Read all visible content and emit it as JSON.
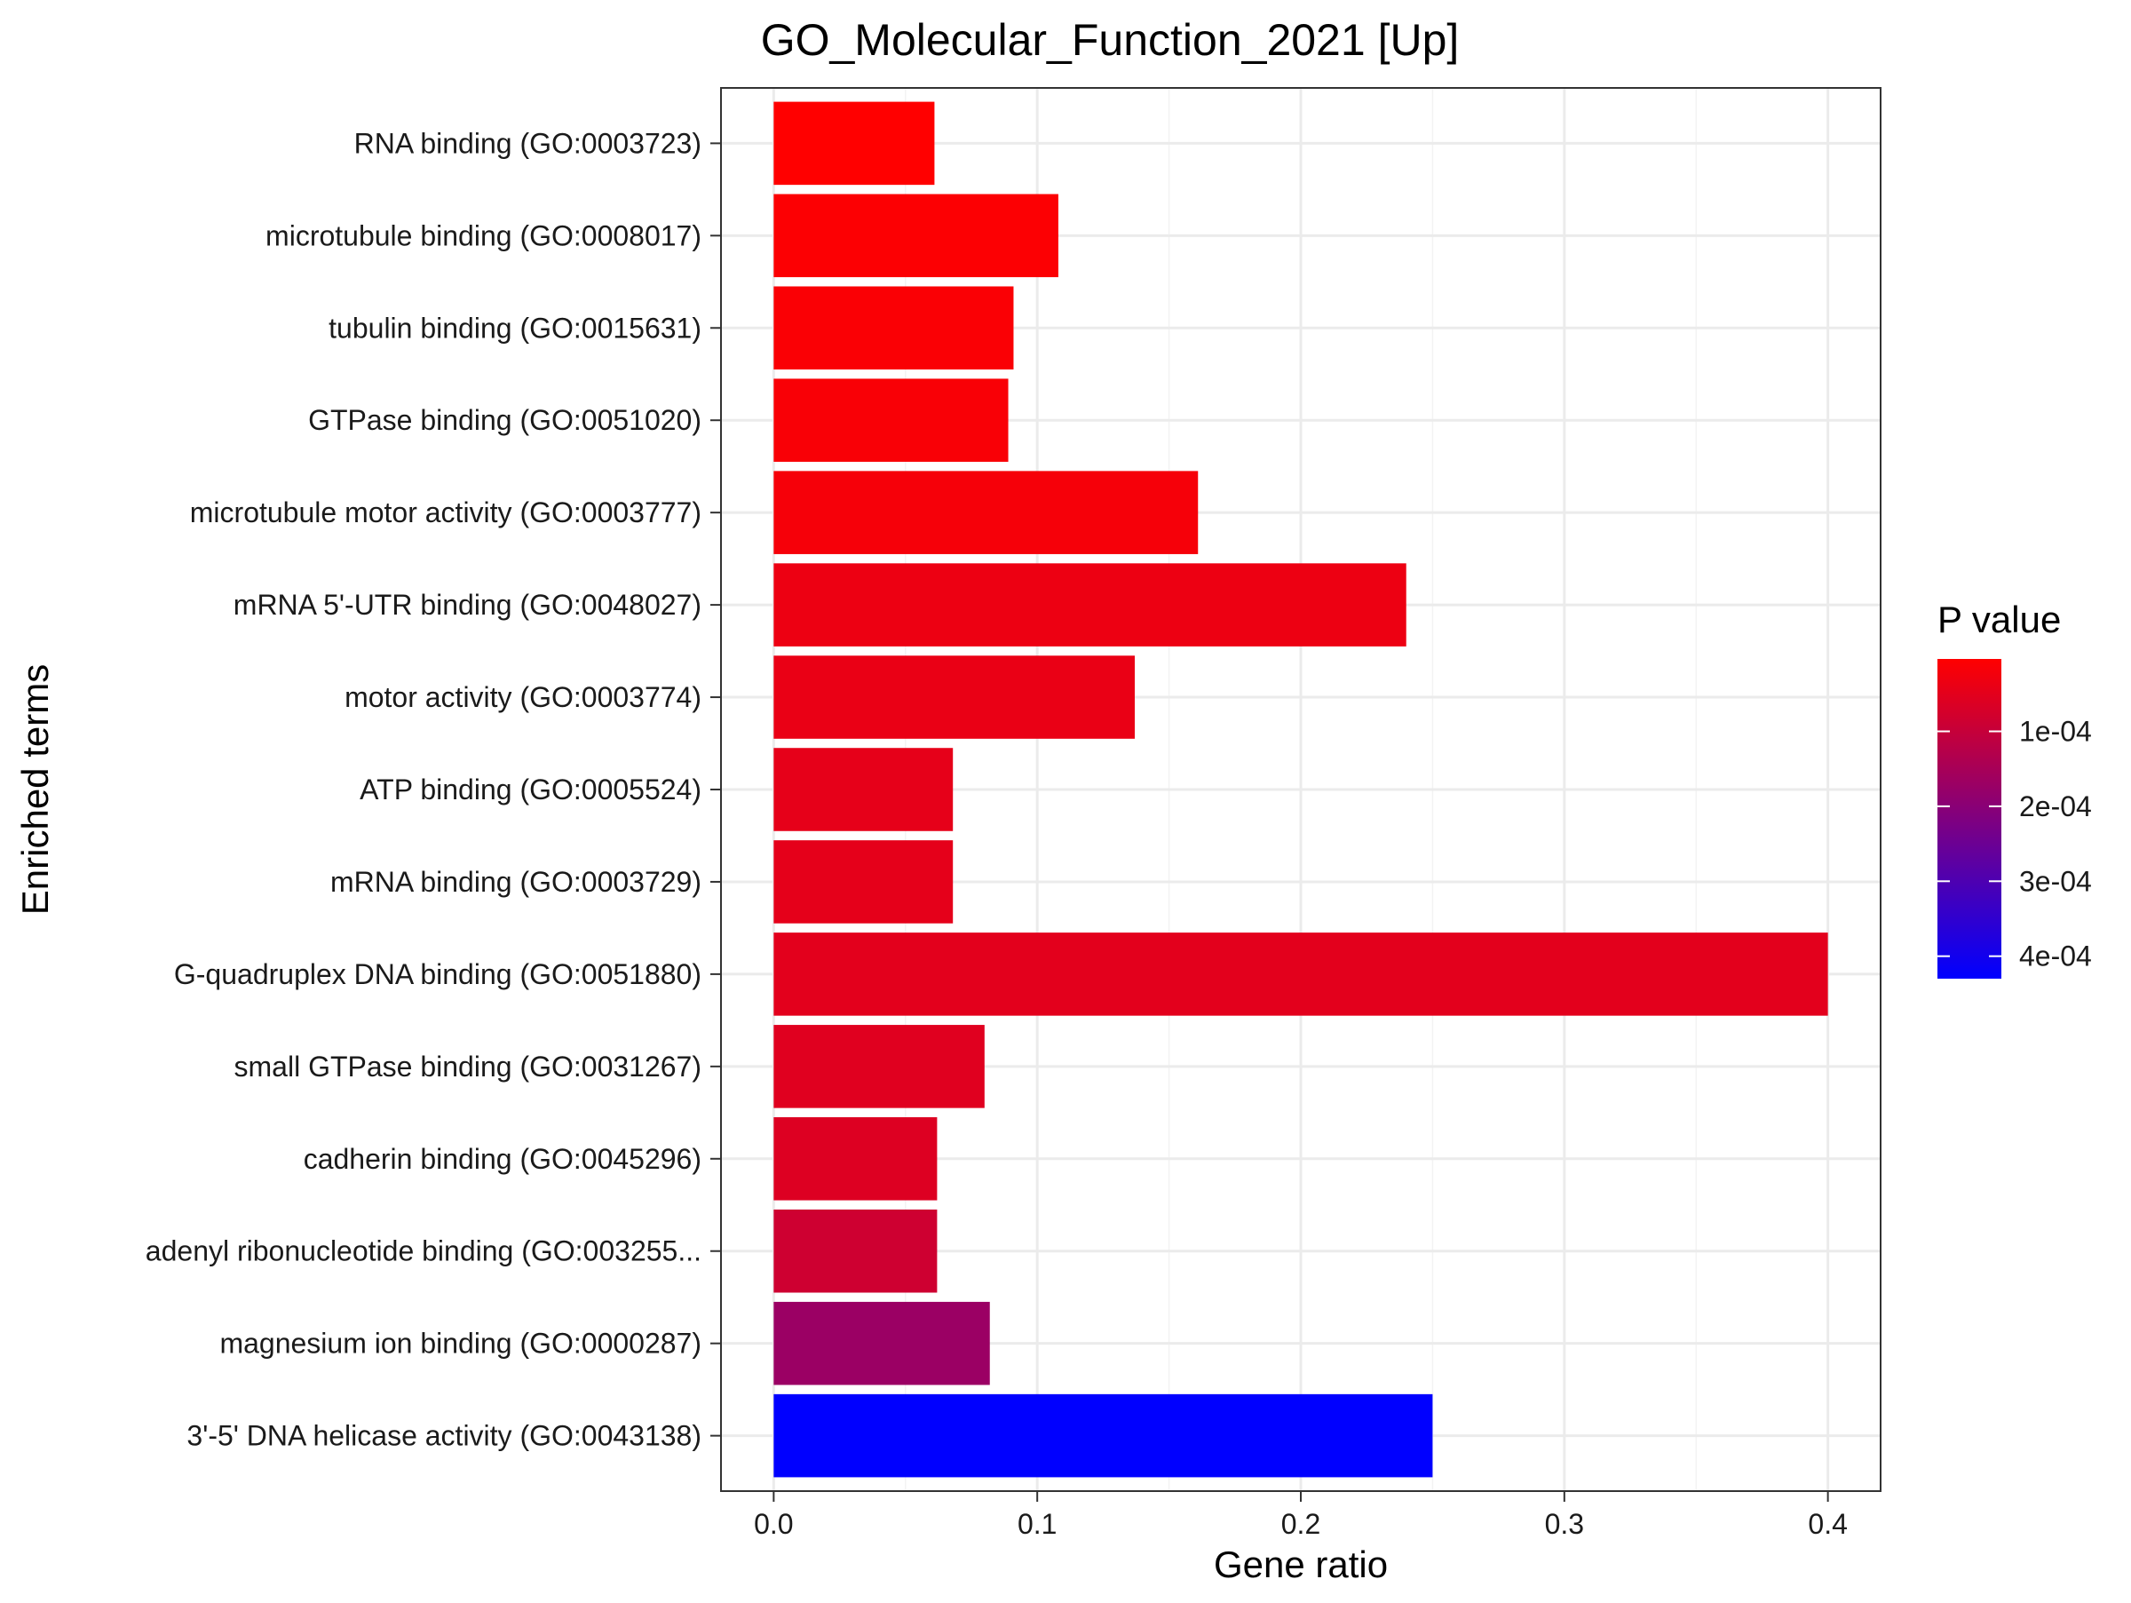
{
  "chart_data": {
    "type": "bar",
    "orientation": "horizontal",
    "title": "GO_Molecular_Function_2021 [Up]",
    "xlabel": "Gene ratio",
    "ylabel": "Enriched terms",
    "xlim": [
      -0.02,
      0.42
    ],
    "xticks": [
      0.0,
      0.1,
      0.2,
      0.3,
      0.4
    ],
    "xtick_labels": [
      "0.0",
      "0.1",
      "0.2",
      "0.3",
      "0.4"
    ],
    "grid": true,
    "legend": {
      "title": "P value",
      "placement": "right",
      "type": "colorbar",
      "range": [
        3.4e-06,
        0.00043
      ],
      "low_color": "#ff0000",
      "high_color": "#0000ff",
      "ticks": [
        0.0001,
        0.0002,
        0.0003,
        0.0004
      ],
      "tick_labels": [
        "1e-04",
        "2e-04",
        "3e-04",
        "4e-04"
      ]
    },
    "bars": [
      {
        "term": "RNA binding (GO:0003723)",
        "gene_ratio": 0.061,
        "p_value": 3.4e-06
      },
      {
        "term": "microtubule binding (GO:0008017)",
        "gene_ratio": 0.108,
        "p_value": 9e-06
      },
      {
        "term": "tubulin binding (GO:0015631)",
        "gene_ratio": 0.091,
        "p_value": 1.1e-05
      },
      {
        "term": "GTPase binding (GO:0051020)",
        "gene_ratio": 0.089,
        "p_value": 1.4e-05
      },
      {
        "term": "microtubule motor activity (GO:0003777)",
        "gene_ratio": 0.161,
        "p_value": 1.9e-05
      },
      {
        "term": "mRNA 5'-UTR binding (GO:0048027)",
        "gene_ratio": 0.24,
        "p_value": 3.4e-05
      },
      {
        "term": "motor activity (GO:0003774)",
        "gene_ratio": 0.137,
        "p_value": 3.8e-05
      },
      {
        "term": "ATP binding (GO:0005524)",
        "gene_ratio": 0.068,
        "p_value": 4.5e-05
      },
      {
        "term": "mRNA binding (GO:0003729)",
        "gene_ratio": 0.068,
        "p_value": 4.7e-05
      },
      {
        "term": "G-quadruplex DNA binding (GO:0051880)",
        "gene_ratio": 0.4,
        "p_value": 5e-05
      },
      {
        "term": "small GTPase binding (GO:0031267)",
        "gene_ratio": 0.08,
        "p_value": 5.5e-05
      },
      {
        "term": "cadherin binding (GO:0045296)",
        "gene_ratio": 0.062,
        "p_value": 6e-05
      },
      {
        "term": "adenyl ribonucleotide binding (GO:003255...",
        "gene_ratio": 0.062,
        "p_value": 8.5e-05
      },
      {
        "term": "magnesium ion binding (GO:0000287)",
        "gene_ratio": 0.082,
        "p_value": 0.00017
      },
      {
        "term": "3'-5' DNA helicase activity (GO:0043138)",
        "gene_ratio": 0.25,
        "p_value": 0.00043
      }
    ]
  }
}
